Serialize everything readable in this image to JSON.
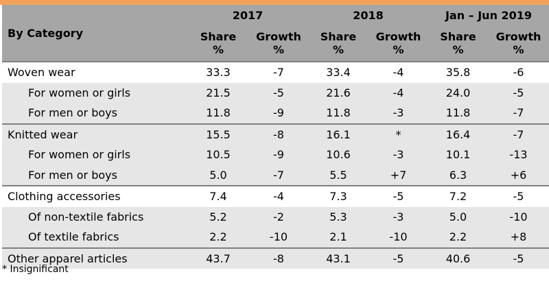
{
  "header": {
    "category": "By Category",
    "periods": [
      "2017",
      "2018",
      "Jan – Jun 2019"
    ],
    "sub_share": "Share",
    "sub_growth": "Growth",
    "unit": "%"
  },
  "rows": [
    {
      "label": "Woven wear",
      "values": [
        "33.3",
        "-7",
        "33.4",
        "-4",
        "35.8",
        "-6"
      ]
    },
    {
      "label": "For women or girls",
      "values": [
        "21.5",
        "-5",
        "21.6",
        "-4",
        "24.0",
        "-5"
      ]
    },
    {
      "label": "For men or boys",
      "values": [
        "11.8",
        "-9",
        "11.8",
        "-3",
        "11.8",
        "-7"
      ]
    },
    {
      "label": "Knitted wear",
      "values": [
        "15.5",
        "-8",
        "16.1",
        "*",
        "16.4",
        "-7"
      ]
    },
    {
      "label": "For women or girls",
      "values": [
        "10.5",
        "-9",
        "10.6",
        "-3",
        "10.1",
        "-13"
      ]
    },
    {
      "label": "For men or boys",
      "values": [
        "5.0",
        "-7",
        "5.5",
        "+7",
        "6.3",
        "+6"
      ]
    },
    {
      "label": "Clothing accessories",
      "values": [
        "7.4",
        "-4",
        "7.3",
        "-5",
        "7.2",
        "-5"
      ]
    },
    {
      "label": "Of non-textile fabrics",
      "values": [
        "5.2",
        "-2",
        "5.3",
        "-3",
        "5.0",
        "-10"
      ]
    },
    {
      "label": "Of textile fabrics",
      "values": [
        "2.2",
        "-10",
        "2.1",
        "-10",
        "2.2",
        "+8"
      ]
    },
    {
      "label": "Other apparel articles",
      "values": [
        "43.7",
        "-8",
        "43.1",
        "-5",
        "40.6",
        "-5"
      ]
    }
  ],
  "footnote": "* Insignificant"
}
